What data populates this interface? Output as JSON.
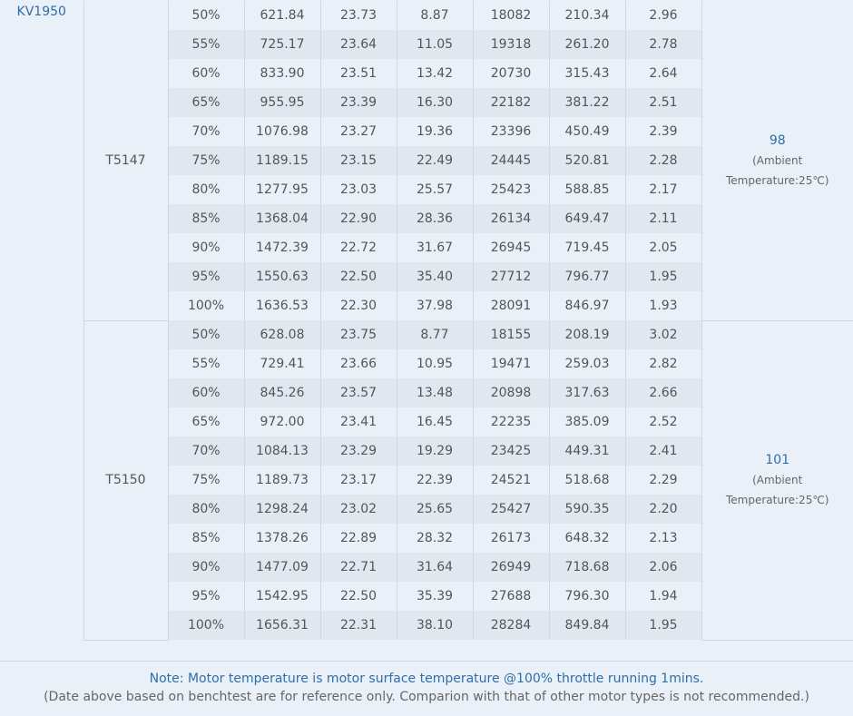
{
  "kv": "KV1950",
  "groups": [
    {
      "motor": "T5147",
      "temp": "98",
      "temp_note1": "(Ambient",
      "temp_note2": "Temperature:25℃)",
      "rows": [
        [
          "50%",
          "621.84",
          "23.73",
          "8.87",
          "18082",
          "210.34",
          "2.96"
        ],
        [
          "55%",
          "725.17",
          "23.64",
          "11.05",
          "19318",
          "261.20",
          "2.78"
        ],
        [
          "60%",
          "833.90",
          "23.51",
          "13.42",
          "20730",
          "315.43",
          "2.64"
        ],
        [
          "65%",
          "955.95",
          "23.39",
          "16.30",
          "22182",
          "381.22",
          "2.51"
        ],
        [
          "70%",
          "1076.98",
          "23.27",
          "19.36",
          "23396",
          "450.49",
          "2.39"
        ],
        [
          "75%",
          "1189.15",
          "23.15",
          "22.49",
          "24445",
          "520.81",
          "2.28"
        ],
        [
          "80%",
          "1277.95",
          "23.03",
          "25.57",
          "25423",
          "588.85",
          "2.17"
        ],
        [
          "85%",
          "1368.04",
          "22.90",
          "28.36",
          "26134",
          "649.47",
          "2.11"
        ],
        [
          "90%",
          "1472.39",
          "22.72",
          "31.67",
          "26945",
          "719.45",
          "2.05"
        ],
        [
          "95%",
          "1550.63",
          "22.50",
          "35.40",
          "27712",
          "796.77",
          "1.95"
        ],
        [
          "100%",
          "1636.53",
          "22.30",
          "37.98",
          "28091",
          "846.97",
          "1.93"
        ]
      ]
    },
    {
      "motor": "T5150",
      "temp": "101",
      "temp_note1": "(Ambient",
      "temp_note2": "Temperature:25℃)",
      "rows": [
        [
          "50%",
          "628.08",
          "23.75",
          "8.77",
          "18155",
          "208.19",
          "3.02"
        ],
        [
          "55%",
          "729.41",
          "23.66",
          "10.95",
          "19471",
          "259.03",
          "2.82"
        ],
        [
          "60%",
          "845.26",
          "23.57",
          "13.48",
          "20898",
          "317.63",
          "2.66"
        ],
        [
          "65%",
          "972.00",
          "23.41",
          "16.45",
          "22235",
          "385.09",
          "2.52"
        ],
        [
          "70%",
          "1084.13",
          "23.29",
          "19.29",
          "23425",
          "449.31",
          "2.41"
        ],
        [
          "75%",
          "1189.73",
          "23.17",
          "22.39",
          "24521",
          "518.68",
          "2.29"
        ],
        [
          "80%",
          "1298.24",
          "23.02",
          "25.65",
          "25427",
          "590.35",
          "2.20"
        ],
        [
          "85%",
          "1378.26",
          "22.89",
          "28.32",
          "26173",
          "648.32",
          "2.13"
        ],
        [
          "90%",
          "1477.09",
          "22.71",
          "31.64",
          "26949",
          "718.68",
          "2.06"
        ],
        [
          "95%",
          "1542.95",
          "22.50",
          "35.39",
          "27688",
          "796.30",
          "1.94"
        ],
        [
          "100%",
          "1656.31",
          "22.31",
          "38.10",
          "28284",
          "849.84",
          "1.95"
        ]
      ]
    }
  ],
  "note": {
    "line1": "Note: Motor temperature is motor surface temperature @100% throttle running 1mins.",
    "line2": "(Date above based on benchtest are for reference only. Comparion with that of other motor types is not recommended.)"
  }
}
